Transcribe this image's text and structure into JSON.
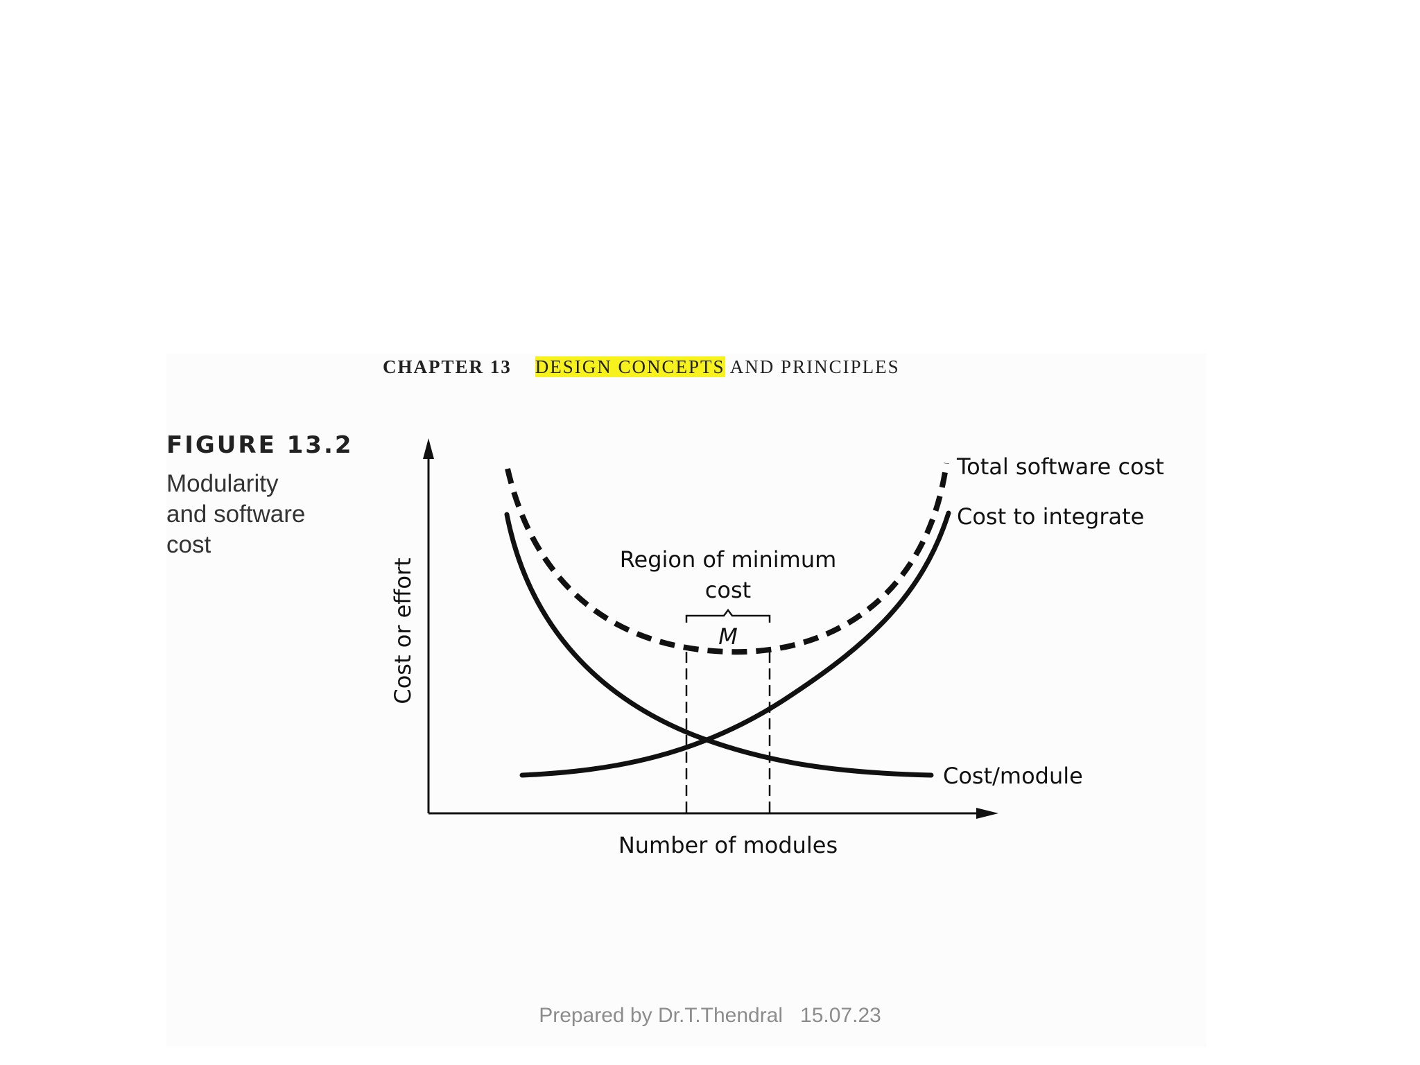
{
  "header": {
    "chapter_number": "CHAPTER 13",
    "highlighted_text": "DESIGN CONCEPTS",
    "rest_text": " AND PRINCIPLES"
  },
  "figure": {
    "number": "FIGURE 13.2",
    "caption_lines": [
      "Modularity",
      "and software",
      "cost"
    ]
  },
  "diagram": {
    "y_axis_label": "Cost or effort",
    "x_axis_label": "Number of modules",
    "curve_labels": {
      "total": "Total software cost",
      "integrate": "Cost to integrate",
      "module": "Cost/module"
    },
    "region_label_line1": "Region of minimum",
    "region_label_line2": "cost",
    "region_marker": "M"
  },
  "footer": {
    "text": "Prepared by Dr.T.Thendral   15.07.23"
  }
}
